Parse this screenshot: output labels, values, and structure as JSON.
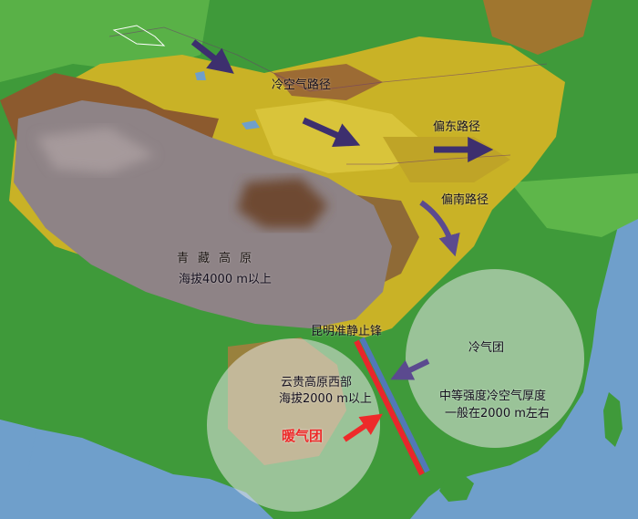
{
  "colors": {
    "sea": "#6f9fcb",
    "lowland": "#3f9a3a",
    "midland": "#c9b226",
    "highland": "#8c5a2e",
    "plateau": "#8e8386",
    "cold_arrow": "#3d2f6e",
    "front_red": "#e8262c",
    "front_blue": "#5277b8",
    "warm_arrow": "#ee2a2a",
    "air_mass_fill": "#e6e6e6"
  },
  "labels": {
    "cold_air_path": "冷空气路径",
    "east_path": "偏东路径",
    "south_path": "偏南路径",
    "plateau_name": "青藏高原",
    "plateau_alt": "海拔4000 m以上",
    "front_name": "昆明准静止锋",
    "cold_mass": "冷气团",
    "cold_desc_1": "中等强度冷空气厚度",
    "cold_desc_2": "一般在2000 m左右",
    "yg_name": "云贵高原西部",
    "yg_alt": "海拔2000 m以上",
    "warm_mass": "暖气团"
  },
  "icons": {
    "path_arrows": "arrow-icon",
    "front": "stationary-front-icon"
  }
}
